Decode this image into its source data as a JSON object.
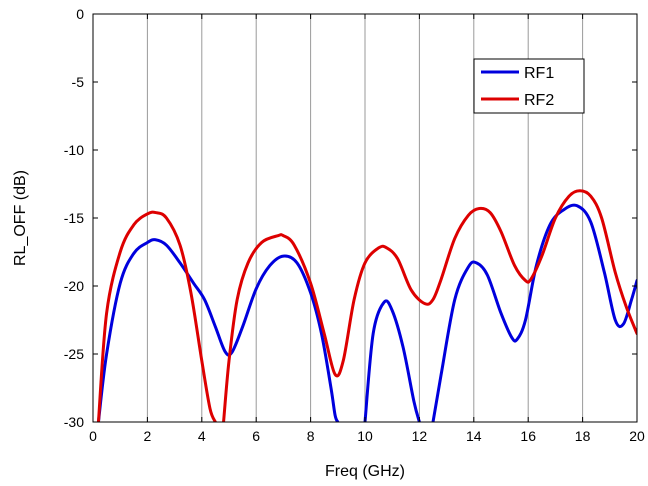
{
  "chart_data": {
    "type": "line",
    "xlabel": "Freq (GHz)",
    "ylabel": "RL_OFF (dB)",
    "xlim": [
      0,
      20
    ],
    "ylim": [
      -30,
      0
    ],
    "xticks": [
      0,
      2,
      4,
      6,
      8,
      10,
      12,
      14,
      16,
      18,
      20
    ],
    "yticks": [
      0,
      -5,
      -10,
      -15,
      -20,
      -25,
      -30
    ],
    "grid": "vertical",
    "legend_position": "top-right",
    "series": [
      {
        "name": "RF1",
        "color": "#0000dd",
        "x": [
          0.2,
          0.5,
          1.0,
          1.5,
          2.0,
          2.3,
          2.7,
          3.2,
          3.7,
          4.1,
          4.5,
          4.85,
          5.1,
          5.5,
          6.0,
          6.5,
          7.0,
          7.5,
          8.0,
          8.4,
          8.75,
          8.9,
          9.0,
          10.0,
          10.3,
          10.7,
          11.0,
          11.4,
          11.8,
          12.0,
          12.5,
          12.8,
          13.3,
          13.8,
          14.1,
          14.5,
          15.0,
          15.4,
          15.6,
          15.9,
          16.3,
          16.8,
          17.3,
          17.8,
          18.3,
          18.8,
          19.2,
          19.5,
          19.8,
          20.0
        ],
        "y": [
          -30,
          -25.0,
          -19.8,
          -17.6,
          -16.8,
          -16.6,
          -17.0,
          -18.3,
          -19.8,
          -21.0,
          -23.0,
          -24.8,
          -24.9,
          -23.0,
          -20.2,
          -18.5,
          -17.8,
          -18.3,
          -20.5,
          -23.5,
          -27.5,
          -29.5,
          -30,
          -30,
          -23.5,
          -21.2,
          -21.8,
          -24.5,
          -28.5,
          -30,
          -30,
          -26.5,
          -21.0,
          -18.6,
          -18.3,
          -19.2,
          -22.0,
          -23.8,
          -23.9,
          -22.5,
          -18.5,
          -15.5,
          -14.4,
          -14.1,
          -15.3,
          -19.0,
          -22.5,
          -22.8,
          -21.0,
          -19.6
        ]
      },
      {
        "name": "RF2",
        "color": "#dd0000",
        "x": [
          0.2,
          0.5,
          1.0,
          1.5,
          2.0,
          2.3,
          2.7,
          3.2,
          3.6,
          4.0,
          4.3,
          4.5,
          4.6,
          4.8,
          5.0,
          5.3,
          5.7,
          6.2,
          6.8,
          7.0,
          7.4,
          8.0,
          8.5,
          8.9,
          9.2,
          9.6,
          10.0,
          10.5,
          10.8,
          11.2,
          11.7,
          12.2,
          12.5,
          12.8,
          13.3,
          13.8,
          14.2,
          14.6,
          15.0,
          15.5,
          15.9,
          16.1,
          16.5,
          17.0,
          17.5,
          17.9,
          18.3,
          18.7,
          19.2,
          19.6,
          20.0
        ],
        "y": [
          -30,
          -22.0,
          -17.5,
          -15.5,
          -14.7,
          -14.6,
          -15.0,
          -17.0,
          -20.5,
          -25.5,
          -29.0,
          -30,
          -30,
          -30,
          -25.5,
          -21.0,
          -18.3,
          -16.8,
          -16.3,
          -16.3,
          -17.0,
          -19.8,
          -23.5,
          -26.5,
          -25.5,
          -21.0,
          -18.3,
          -17.2,
          -17.2,
          -18.0,
          -20.3,
          -21.3,
          -21.0,
          -19.5,
          -16.5,
          -14.8,
          -14.3,
          -14.6,
          -16.0,
          -18.5,
          -19.6,
          -19.5,
          -17.8,
          -15.0,
          -13.4,
          -13.0,
          -13.4,
          -15.0,
          -19.0,
          -21.5,
          -23.5
        ]
      }
    ]
  }
}
